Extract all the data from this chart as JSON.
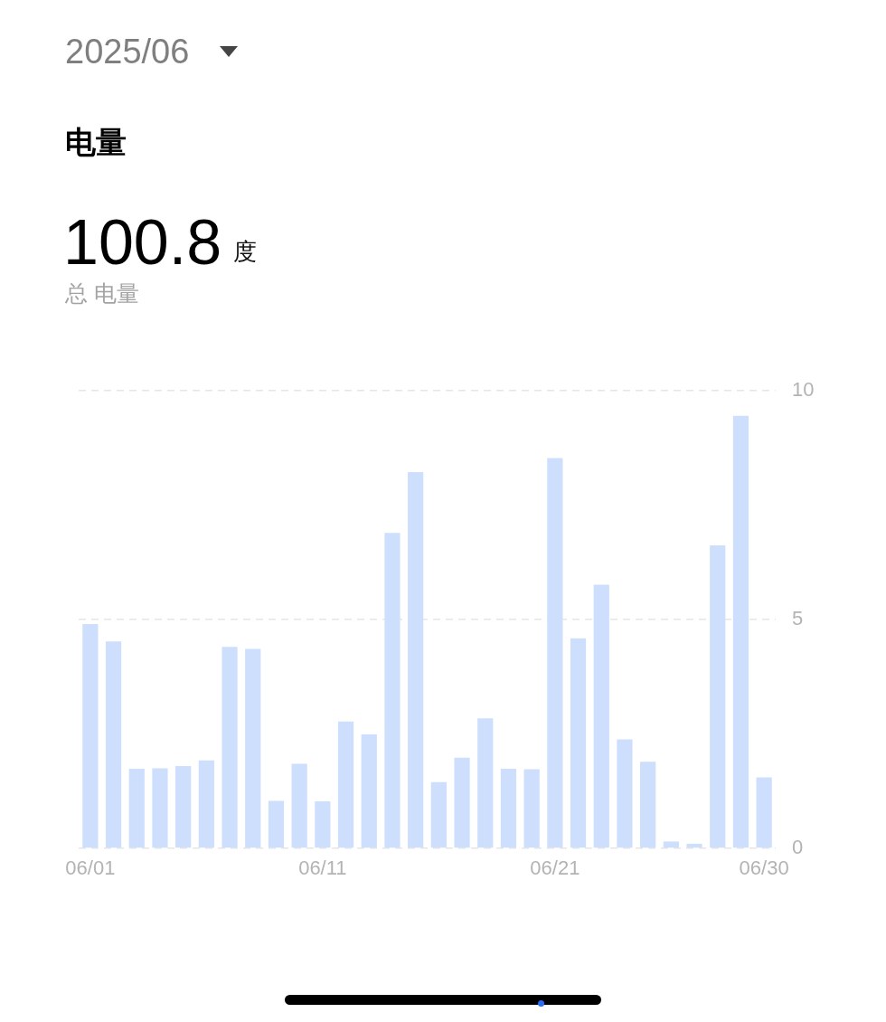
{
  "chart_data": {
    "type": "bar",
    "title": "电量",
    "subtitle": "2025/06",
    "annotations": [
      "100.8",
      "度",
      "总 电量"
    ],
    "categories": [
      "06/01",
      null,
      null,
      null,
      null,
      null,
      null,
      null,
      null,
      null,
      "06/11",
      null,
      null,
      null,
      null,
      null,
      null,
      null,
      null,
      null,
      "06/21",
      null,
      null,
      null,
      null,
      null,
      null,
      null,
      null,
      "06/30"
    ],
    "values": [
      4.9,
      4.52,
      1.74,
      1.75,
      1.8,
      1.92,
      4.4,
      4.36,
      1.04,
      1.85,
      1.03,
      2.77,
      2.49,
      6.89,
      8.22,
      1.45,
      1.98,
      2.84,
      1.74,
      1.73,
      8.53,
      4.59,
      5.76,
      2.38,
      1.89,
      0.15,
      0.1,
      6.62,
      9.45,
      1.55
    ],
    "color": "#cddffc",
    "ylim": [
      0,
      10
    ],
    "yticks": [
      0,
      5,
      10
    ],
    "grid": "y",
    "legend": false
  }
}
